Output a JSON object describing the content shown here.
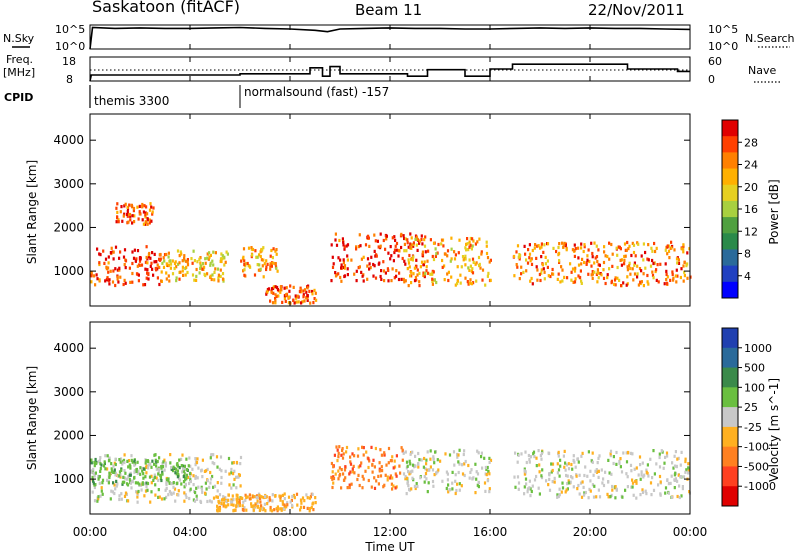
{
  "header": {
    "station": "Saskatoon (fitACF)",
    "beam": "Beam 11",
    "date": "22/Nov/2011"
  },
  "nsky_panel": {
    "left_label": "N.Sky",
    "y_top": "10^5",
    "y_bottom": "10^0",
    "right_top": "10^5",
    "right_bottom": "10^0",
    "right_label": "N.Search",
    "right_line_style": "dotted"
  },
  "freq_panel": {
    "left_label_1": "Freq.",
    "left_label_2": "[MHz]",
    "y_top": "18",
    "y_bottom": "8",
    "right_top": "60",
    "right_bottom": "0",
    "right_label": "Nave",
    "right_line_style": "dotted"
  },
  "cpid_panel": {
    "label": "CPID",
    "modes": [
      {
        "name": "themis 3300",
        "start_hour": 0
      },
      {
        "name": "normalsound (fast) -157",
        "start_hour": 6
      }
    ]
  },
  "power_panel": {
    "ylabel": "Slant Range [km]",
    "yticks": [
      "1000",
      "2000",
      "3000",
      "4000"
    ],
    "colorbar_label": "Power [dB]",
    "colorbar_ticks": [
      "28",
      "24",
      "20",
      "16",
      "12",
      "8",
      "4"
    ],
    "colorbar_colors": [
      "#e00000",
      "#ff4000",
      "#ff8000",
      "#ffb000",
      "#e6d020",
      "#a8d040",
      "#50a040",
      "#2a8a4a",
      "#2a6a9a",
      "#2040c0",
      "#0000ff"
    ]
  },
  "velocity_panel": {
    "ylabel": "Slant Range [km]",
    "yticks": [
      "1000",
      "2000",
      "3000",
      "4000"
    ],
    "colorbar_label": "Velocity [m s^-1]",
    "colorbar_ticks": [
      "1000",
      "500",
      "100",
      "25",
      "-25",
      "-100",
      "-500",
      "-1000"
    ],
    "colorbar_colors": [
      "#2040b0",
      "#2a6a9a",
      "#3a8a4a",
      "#6abf40",
      "#c8c8c8",
      "#ffb020",
      "#ff8020",
      "#ff4020",
      "#e00000"
    ]
  },
  "time_axis": {
    "xlabel": "Time UT",
    "ticks": [
      "00:00",
      "04:00",
      "08:00",
      "12:00",
      "16:00",
      "20:00",
      "00:00"
    ]
  },
  "chart_data": [
    {
      "type": "line",
      "title": "N.Sky / N.Search",
      "x_unit": "hour UT",
      "x": [
        0,
        0.1,
        1,
        2,
        3,
        4,
        5,
        6,
        7,
        8,
        9,
        9.5,
        10,
        11,
        12,
        13,
        14,
        15,
        16,
        17,
        18,
        19,
        20,
        21,
        22,
        23,
        24
      ],
      "series": [
        {
          "name": "N.Sky",
          "values": [
            1,
            30000,
            20000,
            25000,
            20000,
            20000,
            25000,
            30000,
            20000,
            15000,
            8000,
            4000,
            15000,
            20000,
            25000,
            20000,
            20000,
            15000,
            15000,
            20000,
            25000,
            20000,
            25000,
            20000,
            20000,
            15000,
            12000
          ]
        }
      ],
      "ylim": [
        1,
        100000
      ]
    },
    {
      "type": "line",
      "title": "Freq. / Nave",
      "x_unit": "hour UT",
      "series": [
        {
          "name": "Freq.",
          "x": [
            0,
            0.05,
            6,
            6,
            8.8,
            8.8,
            9.3,
            9.3,
            9.6,
            9.6,
            10,
            10,
            12.7,
            12.7,
            13.5,
            13.5,
            15,
            15,
            16,
            16,
            16.9,
            16.9,
            21.5,
            21.5,
            23.5,
            23.5,
            24
          ],
          "values": [
            8,
            10.5,
            10.5,
            11,
            11,
            13.5,
            13.5,
            10,
            10,
            14,
            14,
            11,
            11,
            10,
            10,
            12.7,
            12.7,
            10,
            10,
            13,
            13,
            15,
            15,
            13,
            13,
            12,
            12
          ]
        }
      ],
      "ylim": [
        8,
        18
      ]
    },
    {
      "type": "heatmap",
      "title": "Power [dB]",
      "xlabel": "Time UT",
      "ylabel": "Slant Range [km]",
      "xlim": [
        0,
        24
      ],
      "ylim": [
        200,
        4600
      ],
      "data_gaps_hours": [
        [
          9.0,
          9.6
        ],
        [
          16.1,
          16.9
        ]
      ],
      "scatter_regions": [
        {
          "t": [
            0,
            2.8
          ],
          "r": [
            700,
            1600
          ],
          "value_db": 26
        },
        {
          "t": [
            1,
            2.5
          ],
          "r": [
            2100,
            2600
          ],
          "value_db": 24
        },
        {
          "t": [
            2.8,
            5.5
          ],
          "r": [
            800,
            1500
          ],
          "value_db": 18
        },
        {
          "t": [
            6,
            7.5
          ],
          "r": [
            900,
            1600
          ],
          "value_db": 20
        },
        {
          "t": [
            7,
            9
          ],
          "r": [
            300,
            700
          ],
          "value_db": 24
        },
        {
          "t": [
            9.6,
            13.5
          ],
          "r": [
            800,
            1900
          ],
          "value_db": 26
        },
        {
          "t": [
            12.5,
            16
          ],
          "r": [
            700,
            1800
          ],
          "value_db": 20
        },
        {
          "t": [
            16.9,
            24
          ],
          "r": [
            700,
            1700
          ],
          "value_db": 22
        }
      ]
    },
    {
      "type": "heatmap",
      "title": "Velocity [m s^-1]",
      "xlabel": "Time UT",
      "ylabel": "Slant Range [km]",
      "xlim": [
        0,
        24
      ],
      "ylim": [
        200,
        4600
      ],
      "data_gaps_hours": [
        [
          9.0,
          9.6
        ],
        [
          16.1,
          16.9
        ]
      ],
      "scatter_regions": [
        {
          "t": [
            0,
            6
          ],
          "r": [
            500,
            1600
          ],
          "value_ms": 0
        },
        {
          "t": [
            0,
            4
          ],
          "r": [
            900,
            1500
          ],
          "value_ms": 200
        },
        {
          "t": [
            9.6,
            12.5
          ],
          "r": [
            800,
            1800
          ],
          "value_ms": -300
        },
        {
          "t": [
            12.5,
            16
          ],
          "r": [
            700,
            1700
          ],
          "value_ms": 0
        },
        {
          "t": [
            16.9,
            24
          ],
          "r": [
            600,
            1700
          ],
          "value_ms": 0
        },
        {
          "t": [
            5,
            9
          ],
          "r": [
            300,
            700
          ],
          "value_ms": -100
        }
      ]
    }
  ]
}
